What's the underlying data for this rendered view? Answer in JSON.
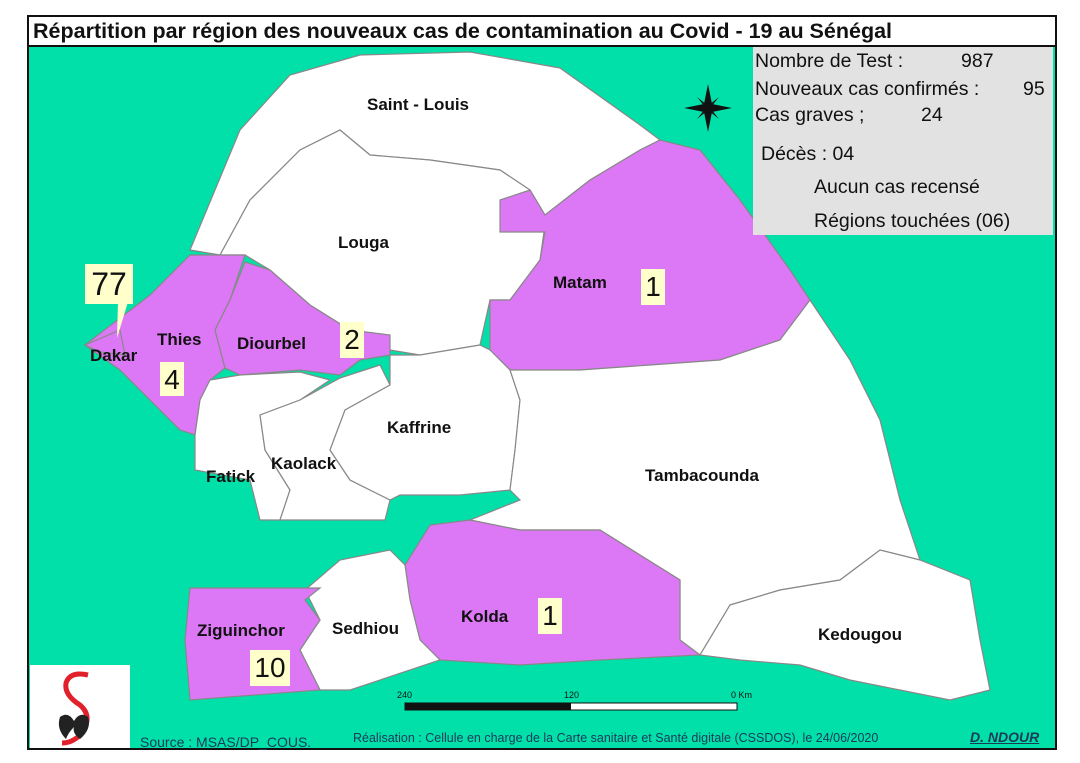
{
  "title": "Répartition par région des nouveaux cas de contamination au Covid - 19 au Sénégal",
  "legend": {
    "tests_label": "Nombre de Test :",
    "tests_value": "987",
    "confirmed_label": "Nouveaux cas confirmés :",
    "confirmed_value": "95",
    "severe_label": "Cas graves ;",
    "severe_value": "24",
    "deaths": "Décès : 04",
    "no_case_label": "Aucun cas recensé",
    "affected_label": "Régions touchées (06)"
  },
  "colors": {
    "sea": "#00E0A8",
    "affected": "#DC78F5",
    "no_case": "#FFFFFF",
    "count_box": "#FFFFCC"
  },
  "regions": {
    "saint_louis": {
      "name": "Saint - Louis",
      "affected": false
    },
    "louga": {
      "name": "Louga",
      "affected": false
    },
    "matam": {
      "name": "Matam",
      "affected": true,
      "cases": "1"
    },
    "dakar": {
      "name": "Dakar",
      "affected": true,
      "cases": "77"
    },
    "thies": {
      "name": "Thies",
      "affected": true,
      "cases": "4"
    },
    "diourbel": {
      "name": "Diourbel",
      "affected": true,
      "cases": "2"
    },
    "fatick": {
      "name": "Fatick",
      "affected": false
    },
    "kaolack": {
      "name": "Kaolack",
      "affected": false
    },
    "kaffrine": {
      "name": "Kaffrine",
      "affected": false
    },
    "tambacounda": {
      "name": "Tambacounda",
      "affected": false
    },
    "kedougou": {
      "name": "Kedougou",
      "affected": false
    },
    "kolda": {
      "name": "Kolda",
      "affected": true,
      "cases": "1"
    },
    "sedhiou": {
      "name": "Sedhiou",
      "affected": false
    },
    "ziguinchor": {
      "name": "Ziguinchor",
      "affected": true,
      "cases": "10"
    }
  },
  "scale": {
    "left": "240",
    "mid": "120",
    "right": "0 Km"
  },
  "footer": {
    "source": "Source : MSAS/DP_COUS.",
    "realisation": "Réalisation : Cellule en charge de la Carte sanitaire et Santé digitale (CSSDOS), le 24/06/2020",
    "author": "D. NDOUR"
  }
}
